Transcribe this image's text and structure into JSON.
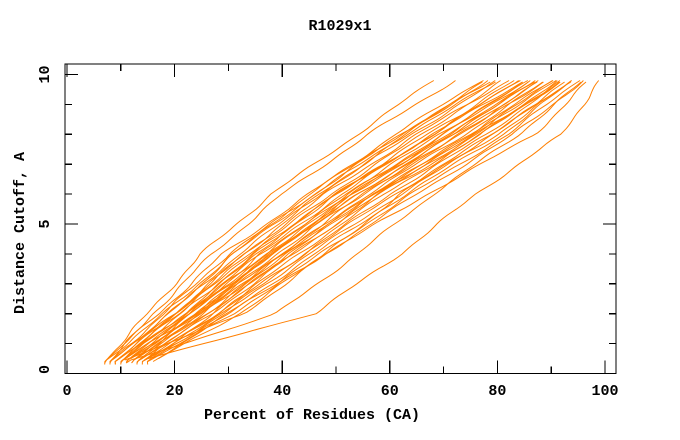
{
  "chart_data": {
    "type": "line",
    "title": "R1029x1",
    "xlabel": "Percent of Residues (CA)",
    "ylabel": "Distance Cutoff, A",
    "xlim": [
      0,
      102
    ],
    "ylim": [
      0,
      10.35
    ],
    "grid": false,
    "legend": "none",
    "x_tick_labels": [
      "0",
      "20",
      "40",
      "60",
      "80",
      "100"
    ],
    "x_ticks_major": [
      0,
      20,
      40,
      60,
      80,
      100
    ],
    "x_ticks_minor": [
      10,
      30,
      50,
      70,
      90
    ],
    "y_tick_labels": [
      "0",
      "5",
      "10"
    ],
    "y_ticks_major": [
      0,
      5,
      10
    ],
    "y_ticks_minor": [
      1,
      2,
      3,
      4,
      6,
      7,
      8,
      9
    ],
    "curve_color": "#ff7f00",
    "frame_color": "#000000",
    "anchor_cutoffs": [
      0.4,
      2,
      4,
      6,
      8,
      9.8
    ],
    "curves": [
      [
        7,
        15,
        25,
        38,
        54,
        68
      ],
      [
        8,
        16,
        27,
        40,
        56,
        72
      ],
      [
        13,
        46,
        62,
        76,
        92,
        99
      ],
      [
        11,
        39,
        54,
        68,
        84,
        96
      ],
      [
        10,
        33,
        48,
        62,
        79,
        94
      ],
      [
        9,
        20,
        33,
        47,
        63,
        78
      ],
      [
        10,
        21,
        34,
        49,
        66,
        81
      ],
      [
        11,
        23,
        36,
        51,
        68,
        83
      ],
      [
        12,
        24,
        38,
        53,
        70,
        85
      ],
      [
        13,
        25,
        39,
        54,
        72,
        86
      ],
      [
        8,
        19,
        32,
        47,
        64,
        80
      ],
      [
        9,
        21,
        35,
        50,
        68,
        84
      ],
      [
        10,
        22,
        36,
        52,
        70,
        86
      ],
      [
        11,
        24,
        38,
        54,
        72,
        88
      ],
      [
        12,
        25,
        40,
        56,
        74,
        89
      ],
      [
        13,
        27,
        42,
        58,
        76,
        90
      ],
      [
        14,
        28,
        43,
        59,
        77,
        91
      ],
      [
        15,
        29,
        44,
        60,
        78,
        92
      ],
      [
        7,
        18,
        31,
        46,
        63,
        80
      ],
      [
        8,
        20,
        34,
        50,
        68,
        85
      ],
      [
        9,
        22,
        37,
        53,
        71,
        87
      ],
      [
        10,
        23,
        38,
        55,
        73,
        88
      ],
      [
        11,
        25,
        41,
        57,
        75,
        90
      ],
      [
        12,
        26,
        42,
        58,
        77,
        92
      ],
      [
        13,
        28,
        44,
        61,
        79,
        93
      ],
      [
        14,
        29,
        45,
        62,
        80,
        94
      ],
      [
        15,
        31,
        47,
        64,
        82,
        95
      ],
      [
        16,
        32,
        48,
        65,
        83,
        96
      ],
      [
        8,
        18,
        30,
        46,
        62,
        78
      ],
      [
        9,
        19,
        31,
        45,
        62,
        79
      ],
      [
        10,
        20,
        33,
        48,
        65,
        82
      ],
      [
        11,
        22,
        35,
        50,
        67,
        84
      ],
      [
        12,
        23,
        37,
        52,
        69,
        86
      ],
      [
        13,
        24,
        38,
        53,
        71,
        87
      ],
      [
        14,
        26,
        40,
        55,
        73,
        89
      ],
      [
        15,
        27,
        41,
        57,
        75,
        91
      ],
      [
        16,
        30,
        46,
        63,
        81,
        94
      ],
      [
        7,
        17,
        29,
        45,
        61,
        77
      ],
      [
        10,
        24,
        40,
        57,
        76,
        92
      ],
      [
        14,
        30,
        48,
        67,
        87,
        97
      ]
    ]
  }
}
